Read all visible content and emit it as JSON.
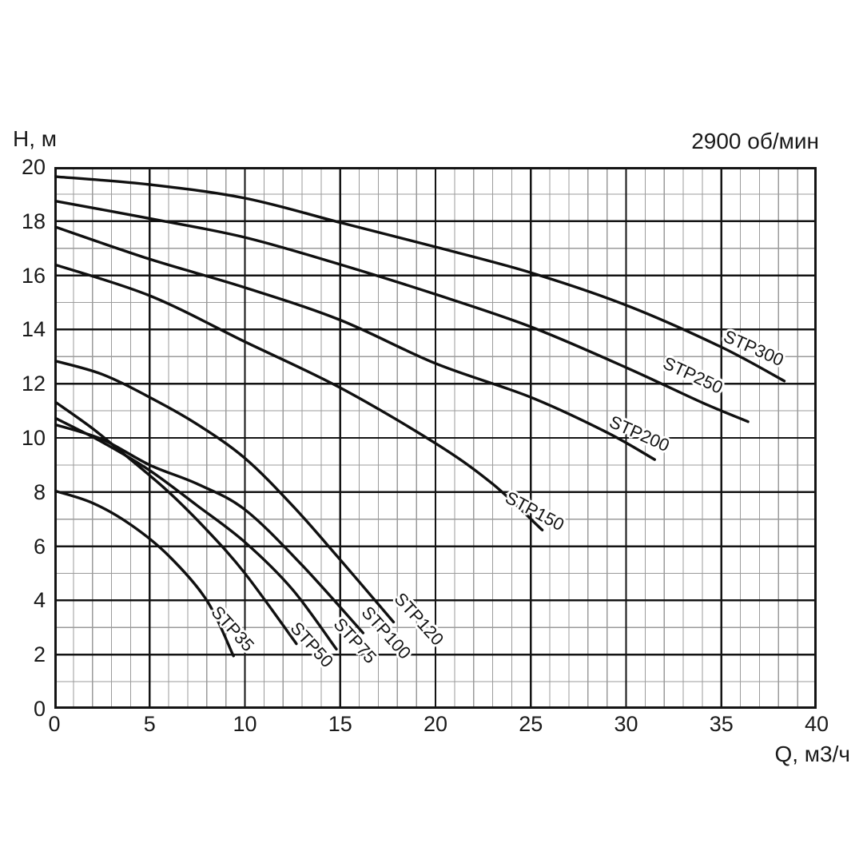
{
  "header": {
    "title": "2900 об/мин"
  },
  "axes": {
    "y_title": "H, м",
    "x_title": "Q, м3/ч",
    "x_ticks": [
      "0",
      "5",
      "10",
      "15",
      "20",
      "25",
      "30",
      "35",
      "40"
    ],
    "y_ticks": [
      "0",
      "2",
      "4",
      "6",
      "8",
      "10",
      "12",
      "14",
      "16",
      "18",
      "20"
    ]
  },
  "colors": {
    "background": "#ffffff",
    "text": "#1a1a1a",
    "grid_minor": "#9b9b9b",
    "grid_major": "#141414",
    "curve": "#101010"
  },
  "chart_data": {
    "type": "line",
    "title": "2900 об/мин",
    "xlabel": "Q, м3/ч",
    "ylabel": "H, м",
    "xlim": [
      0,
      40
    ],
    "ylim": [
      0,
      20
    ],
    "x_major_step": 5,
    "x_minor_step": 1,
    "y_major_step": 2,
    "y_minor_step": 1,
    "grid": true,
    "legend": "inline-curve-labels",
    "series": [
      {
        "name": "STP35",
        "points": [
          [
            0,
            8.05
          ],
          [
            2,
            7.6
          ],
          [
            4,
            6.8
          ],
          [
            6,
            5.65
          ],
          [
            8,
            4.0
          ],
          [
            9.4,
            1.95
          ]
        ],
        "label": {
          "x": 9.35,
          "y": 2.95,
          "angle": 48
        }
      },
      {
        "name": "STP50",
        "points": [
          [
            0,
            11.35
          ],
          [
            2,
            10.35
          ],
          [
            4,
            9.2
          ],
          [
            6,
            8.0
          ],
          [
            8,
            6.6
          ],
          [
            10,
            5.0
          ],
          [
            12.7,
            2.4
          ]
        ],
        "label": {
          "x": 13.5,
          "y": 2.35,
          "angle": 48
        }
      },
      {
        "name": "STP75",
        "points": [
          [
            0,
            10.75
          ],
          [
            2.5,
            9.85
          ],
          [
            5,
            8.8
          ],
          [
            7.5,
            7.5
          ],
          [
            10,
            6.15
          ],
          [
            12.5,
            4.4
          ],
          [
            14.8,
            2.2
          ]
        ],
        "label": {
          "x": 15.75,
          "y": 2.5,
          "angle": 48
        }
      },
      {
        "name": "STP100",
        "points": [
          [
            0,
            10.5
          ],
          [
            2.5,
            9.95
          ],
          [
            5,
            9.0
          ],
          [
            7.5,
            8.3
          ],
          [
            10,
            7.35
          ],
          [
            13,
            5.3
          ],
          [
            16.2,
            2.8
          ]
        ],
        "label": {
          "x": 17.4,
          "y": 2.8,
          "angle": 48
        }
      },
      {
        "name": "STP120",
        "points": [
          [
            0,
            12.85
          ],
          [
            2.5,
            12.35
          ],
          [
            5,
            11.5
          ],
          [
            7.5,
            10.5
          ],
          [
            10,
            9.25
          ],
          [
            12.5,
            7.5
          ],
          [
            15,
            5.5
          ],
          [
            17.8,
            3.2
          ]
        ],
        "label": {
          "x": 19.1,
          "y": 3.3,
          "angle": 48
        }
      },
      {
        "name": "STP150",
        "points": [
          [
            0,
            16.4
          ],
          [
            5,
            15.25
          ],
          [
            10,
            13.55
          ],
          [
            15,
            11.85
          ],
          [
            20,
            9.8
          ],
          [
            23,
            8.3
          ],
          [
            25.6,
            6.6
          ]
        ],
        "label": {
          "x": 25.2,
          "y": 7.3,
          "angle": 28
        }
      },
      {
        "name": "STP200",
        "points": [
          [
            0,
            17.8
          ],
          [
            5,
            16.6
          ],
          [
            10,
            15.55
          ],
          [
            15,
            14.35
          ],
          [
            20,
            12.75
          ],
          [
            25,
            11.5
          ],
          [
            29,
            10.2
          ],
          [
            31.5,
            9.2
          ]
        ],
        "label": {
          "x": 30.7,
          "y": 10.15,
          "angle": 24
        }
      },
      {
        "name": "STP250",
        "points": [
          [
            0,
            18.75
          ],
          [
            5,
            18.1
          ],
          [
            10,
            17.4
          ],
          [
            15,
            16.4
          ],
          [
            20,
            15.3
          ],
          [
            25,
            14.1
          ],
          [
            30,
            12.6
          ],
          [
            34,
            11.3
          ],
          [
            36.4,
            10.6
          ]
        ],
        "label": {
          "x": 33.5,
          "y": 12.3,
          "angle": 25
        }
      },
      {
        "name": "STP300",
        "points": [
          [
            0,
            19.65
          ],
          [
            5,
            19.35
          ],
          [
            10,
            18.85
          ],
          [
            15,
            17.95
          ],
          [
            20,
            17.05
          ],
          [
            25,
            16.1
          ],
          [
            30,
            14.9
          ],
          [
            35,
            13.35
          ],
          [
            38.3,
            12.1
          ]
        ],
        "label": {
          "x": 36.7,
          "y": 13.3,
          "angle": 24
        }
      }
    ]
  }
}
